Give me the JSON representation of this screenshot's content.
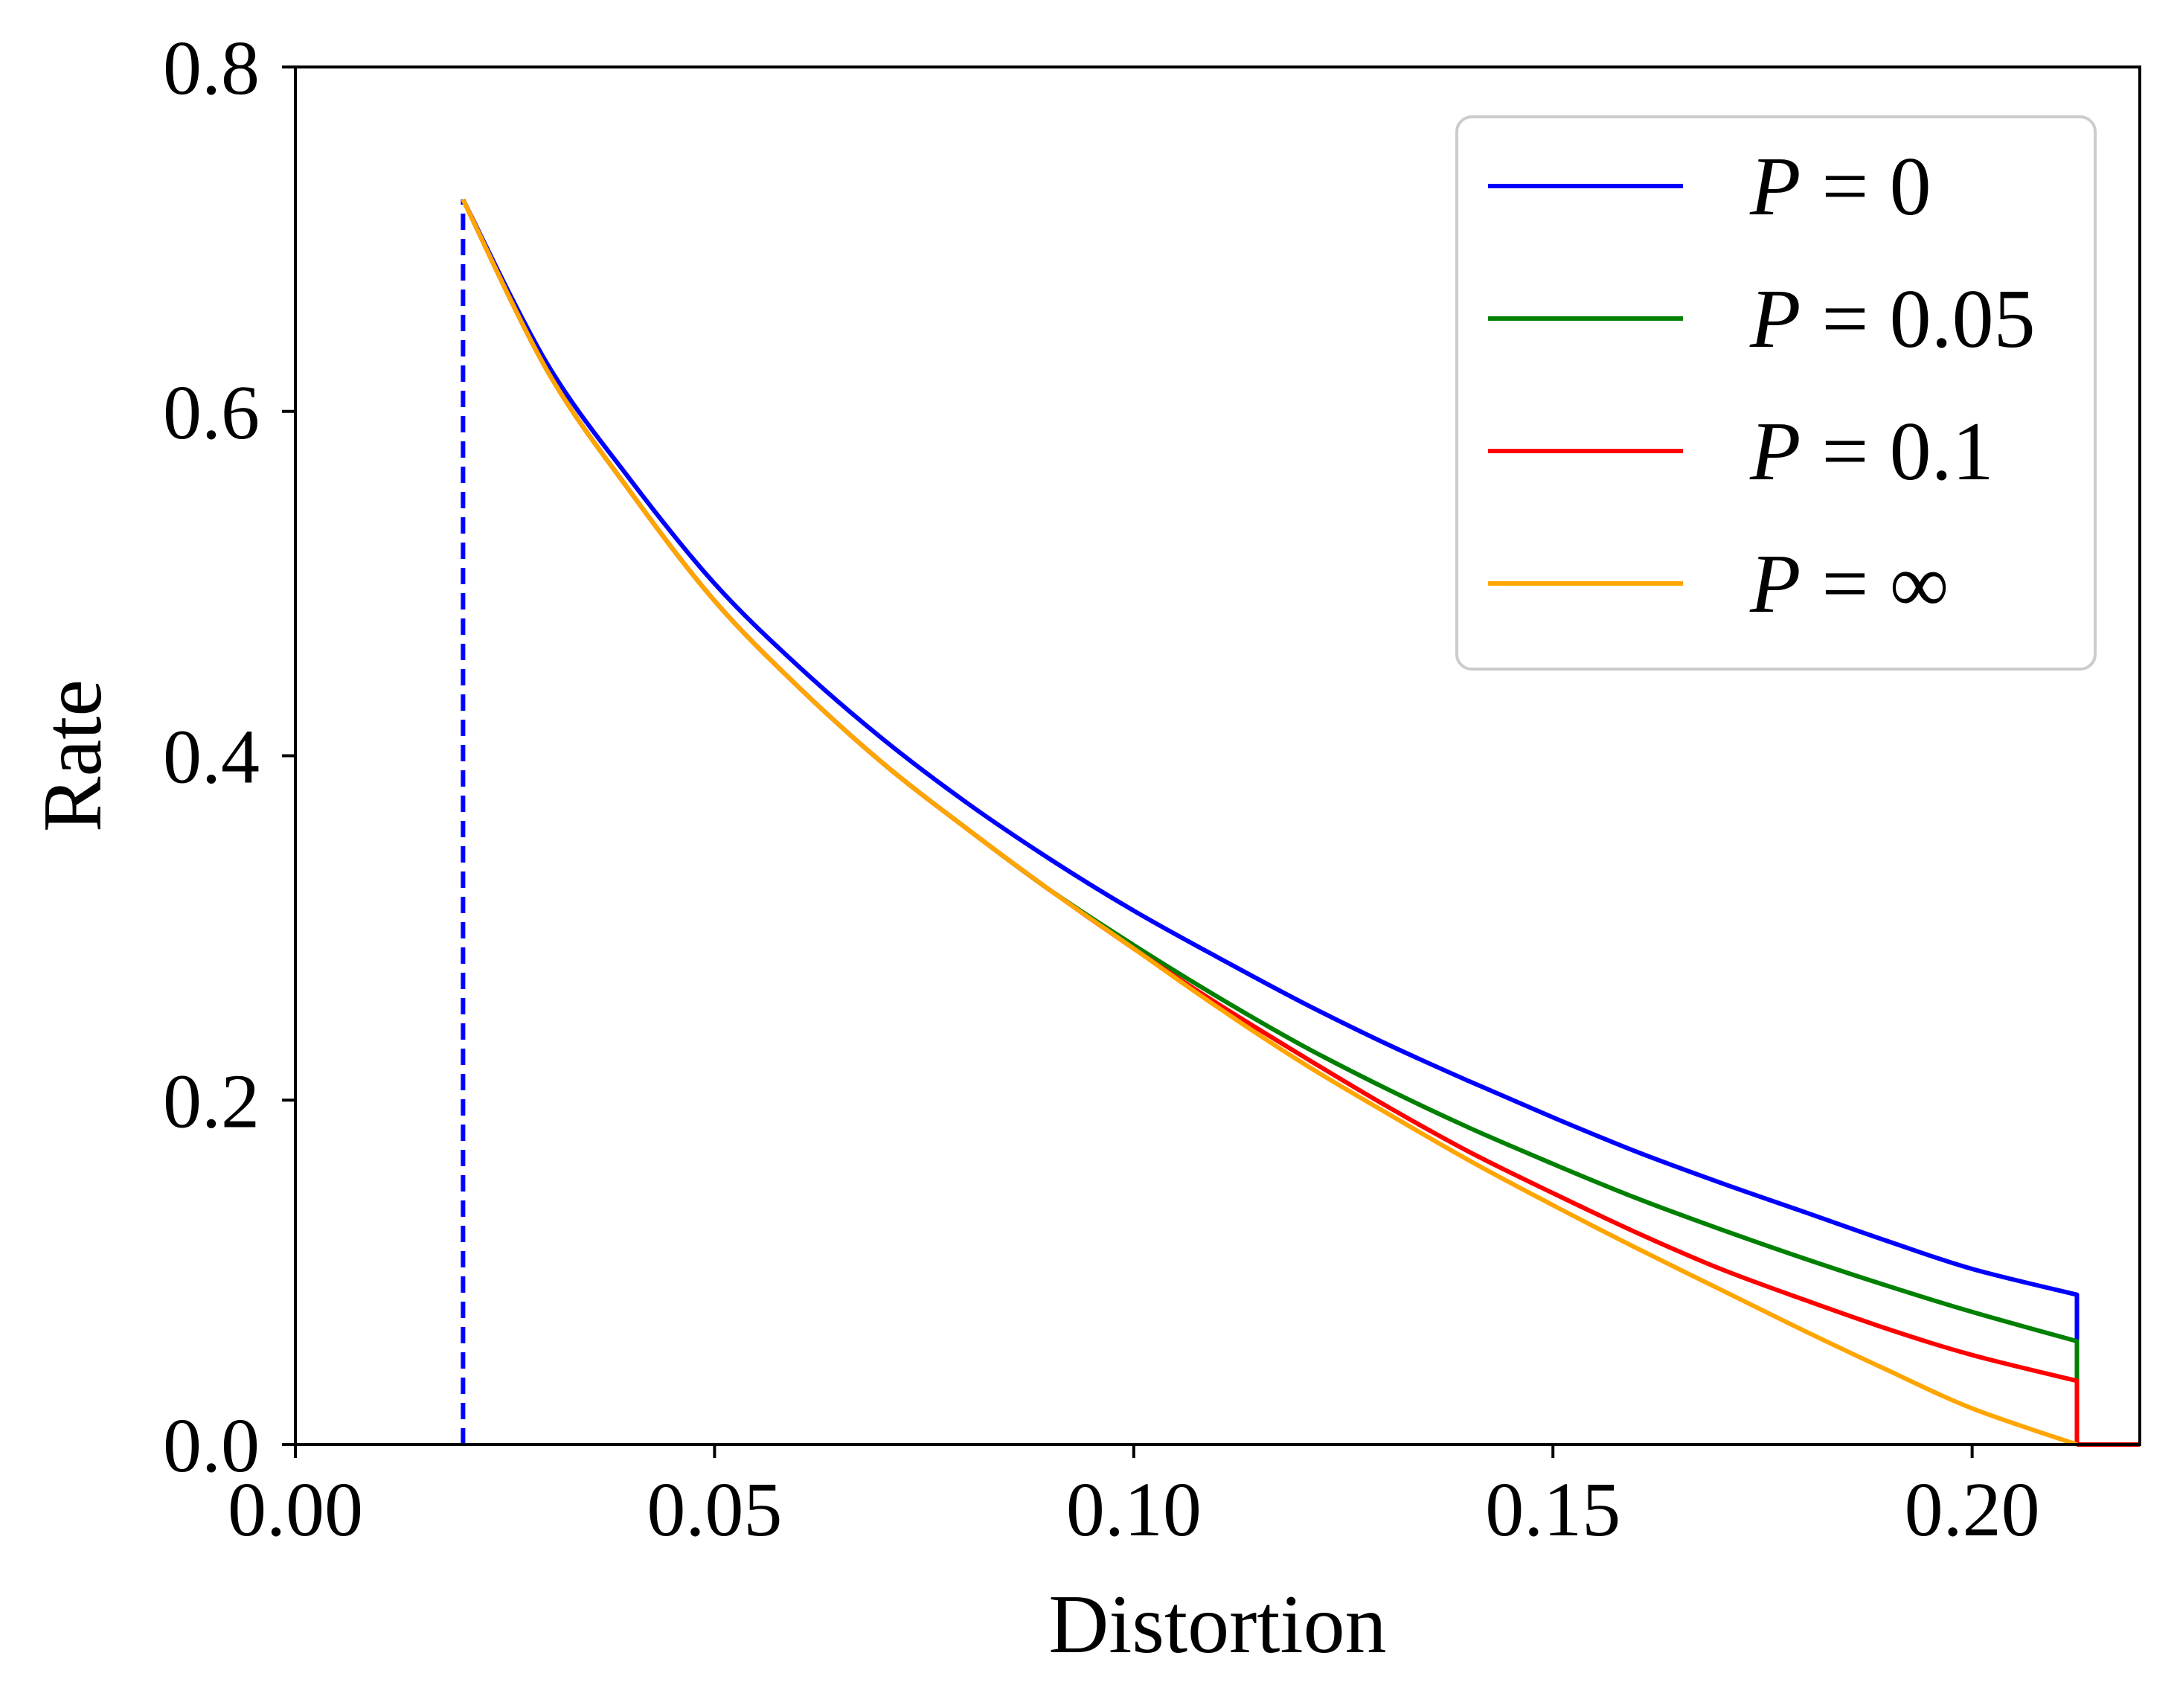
{
  "chart_data": {
    "type": "line",
    "title": "",
    "xlabel": "Distortion",
    "ylabel": "Rate",
    "xlim": [
      0.0,
      0.22
    ],
    "ylim": [
      0.0,
      0.8
    ],
    "xticks": [
      0.0,
      0.05,
      0.1,
      0.15,
      0.2
    ],
    "xtick_labels": [
      "0.00",
      "0.05",
      "0.10",
      "0.15",
      "0.20"
    ],
    "yticks": [
      0.0,
      0.2,
      0.4,
      0.6,
      0.8
    ],
    "ytick_labels": [
      "0.0",
      "0.2",
      "0.4",
      "0.6",
      "0.8"
    ],
    "grid": false,
    "legend_position": "top-right",
    "vline": {
      "x": 0.02,
      "y_range": [
        0.0,
        0.723
      ],
      "color": "#0000ff",
      "style": "dashed"
    },
    "x_end": 0.2125,
    "series": [
      {
        "name": "P = 0",
        "legend_var": "P",
        "legend_op": " = ",
        "legend_val": "0",
        "color": "#0000ff",
        "x": [
          0.02,
          0.03,
          0.04,
          0.05,
          0.06,
          0.07,
          0.08,
          0.09,
          0.1,
          0.11,
          0.12,
          0.13,
          0.14,
          0.15,
          0.16,
          0.17,
          0.18,
          0.19,
          0.2,
          0.2125
        ],
        "y": [
          0.723,
          0.628,
          0.56,
          0.5,
          0.452,
          0.41,
          0.373,
          0.34,
          0.31,
          0.283,
          0.257,
          0.233,
          0.211,
          0.19,
          0.17,
          0.152,
          0.135,
          0.118,
          0.102,
          0.087
        ],
        "tail_drop_to": 0.0
      },
      {
        "name": "P = 0.05",
        "legend_var": "P",
        "legend_op": " = ",
        "legend_val": "0.05",
        "color": "#008000",
        "x": [
          0.02,
          0.03,
          0.04,
          0.05,
          0.06,
          0.07,
          0.08,
          0.09,
          0.1,
          0.11,
          0.12,
          0.13,
          0.14,
          0.15,
          0.16,
          0.17,
          0.18,
          0.19,
          0.2,
          0.2125
        ],
        "y": [
          0.723,
          0.624,
          0.553,
          0.49,
          0.44,
          0.396,
          0.358,
          0.322,
          0.29,
          0.26,
          0.232,
          0.207,
          0.184,
          0.163,
          0.143,
          0.125,
          0.108,
          0.092,
          0.077,
          0.06
        ],
        "tail_drop_to": 0.0
      },
      {
        "name": "P = 0.1",
        "legend_var": "P",
        "legend_op": " = ",
        "legend_val": "0.1",
        "color": "#ff0000",
        "x": [
          0.02,
          0.03,
          0.04,
          0.05,
          0.06,
          0.07,
          0.08,
          0.09,
          0.1,
          0.11,
          0.12,
          0.13,
          0.14,
          0.15,
          0.16,
          0.17,
          0.18,
          0.19,
          0.2,
          0.2125
        ],
        "y": [
          0.723,
          0.624,
          0.553,
          0.49,
          0.44,
          0.396,
          0.358,
          0.322,
          0.288,
          0.256,
          0.226,
          0.197,
          0.17,
          0.146,
          0.123,
          0.102,
          0.084,
          0.067,
          0.052,
          0.037
        ],
        "tail_drop_to": 0.0
      },
      {
        "name": "P = ∞",
        "legend_var": "P",
        "legend_op": " = ",
        "legend_val": "∞",
        "color": "#ffa500",
        "x": [
          0.02,
          0.03,
          0.04,
          0.05,
          0.06,
          0.07,
          0.08,
          0.09,
          0.1,
          0.11,
          0.12,
          0.13,
          0.14,
          0.15,
          0.16,
          0.17,
          0.18,
          0.19,
          0.2,
          0.2125
        ],
        "y": [
          0.723,
          0.624,
          0.553,
          0.49,
          0.44,
          0.396,
          0.358,
          0.322,
          0.288,
          0.254,
          0.222,
          0.193,
          0.165,
          0.139,
          0.114,
          0.09,
          0.066,
          0.043,
          0.021,
          0.0
        ],
        "tail_drop_to": 0.0
      }
    ],
    "zero_tail": {
      "x": [
        0.2125,
        0.22
      ],
      "y": 0.0,
      "color": "#ff0000"
    }
  }
}
